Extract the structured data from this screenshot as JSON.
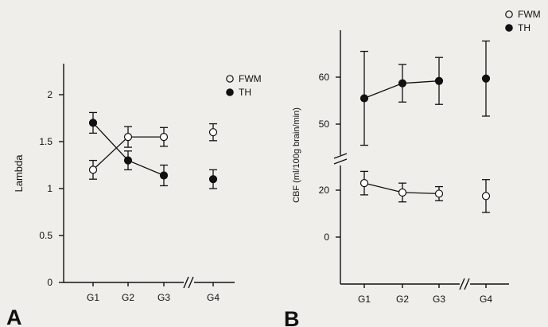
{
  "chart_data": [
    {
      "type": "line",
      "panel_label": "A",
      "ylabel": "Lambda",
      "xlabel": "",
      "categories": [
        "G1",
        "G2",
        "G3",
        "G4"
      ],
      "yticks": [
        "0",
        "0.5",
        "1",
        "1.5",
        "2"
      ],
      "ylim": [
        0,
        2.3
      ],
      "axis_break": "between G3 and G4 on x-axis",
      "series": [
        {
          "name": "FWM",
          "marker": "open-circle",
          "connect": [
            0,
            1,
            2
          ],
          "values": [
            1.2,
            1.55,
            1.55,
            1.6
          ],
          "err": [
            0.1,
            0.11,
            0.1,
            0.09
          ]
        },
        {
          "name": "TH",
          "marker": "filled-circle",
          "connect": [
            0,
            1,
            2
          ],
          "values": [
            1.7,
            1.3,
            1.14,
            1.1
          ],
          "err": [
            0.11,
            0.1,
            0.11,
            0.1
          ]
        }
      ],
      "legend": {
        "placement": "top-right"
      }
    },
    {
      "type": "line",
      "panel_label": "B",
      "ylabel": "CBF (ml/100g brain/min)",
      "xlabel": "",
      "categories": [
        "G1",
        "G2",
        "G3",
        "G4"
      ],
      "yticks": [
        "0",
        "20",
        "50",
        "60"
      ],
      "axis_break": "y-axis broken between 20 and 50; x-axis broken between G3 and G4",
      "series": [
        {
          "name": "FWM",
          "marker": "open-circle",
          "connect": [
            0,
            1,
            2
          ],
          "values": [
            23,
            19,
            18.5,
            17.5
          ],
          "err": [
            5,
            4,
            3,
            7
          ]
        },
        {
          "name": "TH",
          "marker": "filled-circle",
          "connect": [
            0,
            1,
            2
          ],
          "values": [
            55.5,
            58.7,
            59.2,
            59.7
          ],
          "err": [
            10,
            4,
            5,
            8
          ]
        }
      ],
      "legend": {
        "placement": "top-right"
      }
    }
  ]
}
